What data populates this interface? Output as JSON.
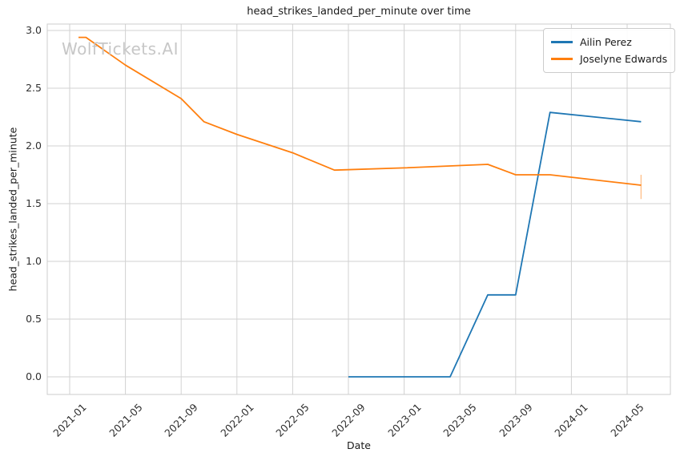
{
  "watermark": "WolfTickets.AI",
  "chart_data": {
    "type": "line",
    "title": "head_strikes_landed_per_minute over time",
    "xlabel": "Date",
    "ylabel": "head_strikes_landed_per_minute",
    "x_tick_labels": [
      "2021-01",
      "2021-05",
      "2021-09",
      "2022-01",
      "2022-05",
      "2022-09",
      "2023-01",
      "2023-05",
      "2023-09",
      "2024-01",
      "2024-05"
    ],
    "y_tick_labels": [
      "0.0",
      "0.5",
      "1.0",
      "1.5",
      "2.0",
      "2.5",
      "3.0"
    ],
    "ylim": [
      -0.15,
      3.06
    ],
    "grid": true,
    "legend_position": "upper right",
    "colors": {
      "ailin_perez": "#1f77b4",
      "joselyne_edwards": "#ff7f0e",
      "gridline": "#d2d2d2",
      "spine": "#cccccc",
      "watermark": "#c7c7c7"
    },
    "series": [
      {
        "name": "Ailin Perez",
        "color": "#1f77b4",
        "points": [
          [
            "2022-09-01",
            0.0
          ],
          [
            "2023-04-10",
            0.0
          ],
          [
            "2023-07-01",
            0.71
          ],
          [
            "2023-09-01",
            0.71
          ],
          [
            "2023-11-15",
            2.29
          ],
          [
            "2024-06-01",
            2.21
          ]
        ]
      },
      {
        "name": "Joselyne Edwards",
        "color": "#ff7f0e",
        "points": [
          [
            "2021-01-20",
            2.94
          ],
          [
            "2021-02-06",
            2.94
          ],
          [
            "2021-05-01",
            2.7
          ],
          [
            "2021-09-01",
            2.41
          ],
          [
            "2021-10-20",
            2.21
          ],
          [
            "2022-01-01",
            2.1
          ],
          [
            "2022-05-01",
            1.94
          ],
          [
            "2022-08-01",
            1.79
          ],
          [
            "2023-01-01",
            1.81
          ],
          [
            "2023-07-01",
            1.84
          ],
          [
            "2023-09-01",
            1.75
          ],
          [
            "2023-11-15",
            1.75
          ],
          [
            "2024-06-01",
            1.66
          ]
        ],
        "error_bars": [
          {
            "x": "2024-06-01",
            "low": 1.54,
            "high": 1.75
          }
        ]
      }
    ]
  }
}
